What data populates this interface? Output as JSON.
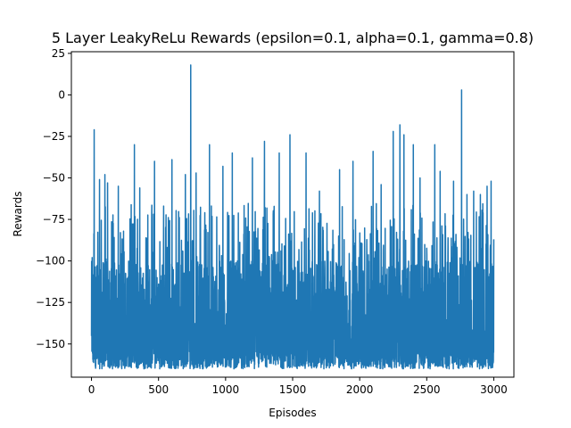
{
  "chart_data": {
    "type": "line",
    "title": "5 Layer LeakyReLu Rewards (epsilon=0.1, alpha=0.1, gamma=0.8)",
    "xlabel": "Episodes",
    "ylabel": "Rewards",
    "xlim": [
      -150,
      3150
    ],
    "ylim": [
      -170,
      26
    ],
    "xticks": [
      0,
      500,
      1000,
      1500,
      2000,
      2500,
      3000
    ],
    "yticks": [
      25,
      0,
      -25,
      -50,
      -75,
      -100,
      -125,
      -150
    ],
    "xtick_labels": [
      "0",
      "500",
      "1000",
      "1500",
      "2000",
      "2500",
      "3000"
    ],
    "ytick_labels": [
      "25",
      "0",
      "−25",
      "−50",
      "−75",
      "−100",
      "−125",
      "−150"
    ],
    "grid": false,
    "series": [
      {
        "color": "#1f77b4",
        "n_points": 3001,
        "baseline_range": [
          -165,
          -100
        ],
        "peaks": [
          {
            "x": 5,
            "y": -98
          },
          {
            "x": 20,
            "y": -21
          },
          {
            "x": 60,
            "y": -51
          },
          {
            "x": 100,
            "y": -48
          },
          {
            "x": 120,
            "y": -53
          },
          {
            "x": 200,
            "y": -55
          },
          {
            "x": 320,
            "y": -30
          },
          {
            "x": 360,
            "y": -56
          },
          {
            "x": 470,
            "y": -40
          },
          {
            "x": 600,
            "y": -39
          },
          {
            "x": 700,
            "y": -48
          },
          {
            "x": 740,
            "y": 18
          },
          {
            "x": 780,
            "y": -47
          },
          {
            "x": 880,
            "y": -30
          },
          {
            "x": 980,
            "y": -43
          },
          {
            "x": 1050,
            "y": -35
          },
          {
            "x": 1200,
            "y": -38
          },
          {
            "x": 1290,
            "y": -28
          },
          {
            "x": 1400,
            "y": -35
          },
          {
            "x": 1480,
            "y": -24
          },
          {
            "x": 1600,
            "y": -35
          },
          {
            "x": 1700,
            "y": -58
          },
          {
            "x": 1850,
            "y": -45
          },
          {
            "x": 1950,
            "y": -40
          },
          {
            "x": 2100,
            "y": -34
          },
          {
            "x": 2160,
            "y": -54
          },
          {
            "x": 2250,
            "y": -22
          },
          {
            "x": 2300,
            "y": -18
          },
          {
            "x": 2330,
            "y": -24
          },
          {
            "x": 2400,
            "y": -30
          },
          {
            "x": 2450,
            "y": -50
          },
          {
            "x": 2560,
            "y": -30
          },
          {
            "x": 2600,
            "y": -46
          },
          {
            "x": 2700,
            "y": -52
          },
          {
            "x": 2760,
            "y": 3
          },
          {
            "x": 2800,
            "y": -60
          },
          {
            "x": 2850,
            "y": -58
          },
          {
            "x": 2900,
            "y": -60
          },
          {
            "x": 2950,
            "y": -55
          },
          {
            "x": 2980,
            "y": -52
          },
          {
            "x": 3000,
            "y": -87
          }
        ]
      }
    ]
  }
}
